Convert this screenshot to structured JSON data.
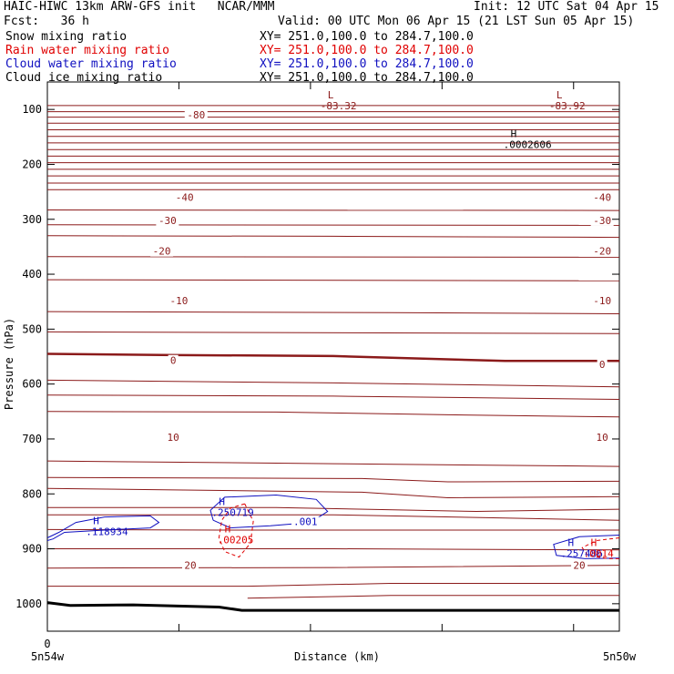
{
  "header": {
    "left_title": "HAIC-HIWC 13km ARW-GFS init   NCAR/MMM",
    "init": "Init: 12 UTC Sat 04 Apr 15",
    "fcst": "Fcst:   36 h",
    "valid": "Valid: 00 UTC Mon 06 Apr 15 (21 LST Sun 05 Apr 15)",
    "fields": [
      {
        "name": "Snow mixing ratio",
        "xy": "XY= 251.0,100.0 to 284.7,100.0",
        "color": "#000000"
      },
      {
        "name": "Rain water mixing ratio",
        "xy": "XY= 251.0,100.0 to 284.7,100.0",
        "color": "#e00000"
      },
      {
        "name": "Cloud water mixing ratio",
        "xy": "XY= 251.0,100.0 to 284.7,100.0",
        "color": "#1010c0"
      },
      {
        "name": "Cloud ice mixing ratio",
        "xy": "XY= 251.0,100.0 to 284.7,100.0",
        "color": "#000000"
      }
    ]
  },
  "chart_data": {
    "type": "contour-cross-section",
    "xlabel": "Distance (km)",
    "ylabel": "Pressure (hPa)",
    "x_tick_labels": [
      "0"
    ],
    "x_endpoint_labels": [
      "5n54w",
      "5n50w"
    ],
    "ylim": [
      1050,
      50
    ],
    "y_ticks": [
      100,
      200,
      300,
      400,
      500,
      600,
      700,
      800,
      900,
      1000
    ],
    "colors": {
      "temperature": "#8b1a1a",
      "rain": "#e00000",
      "cloud_water": "#1010c0",
      "terrain": "#000000"
    },
    "temperature_label_levels": [
      {
        "text": "-80",
        "p": 110,
        "x": 0.26
      },
      {
        "text": "-40",
        "p": 260,
        "x": 0.24
      },
      {
        "text": "-40",
        "p": 260,
        "x": 0.97
      },
      {
        "text": "-30",
        "p": 302,
        "x": 0.21
      },
      {
        "text": "-30",
        "p": 302,
        "x": 0.97
      },
      {
        "text": "-20",
        "p": 358,
        "x": 0.2
      },
      {
        "text": "-20",
        "p": 358,
        "x": 0.97
      },
      {
        "text": "-10",
        "p": 448,
        "x": 0.23
      },
      {
        "text": "-10",
        "p": 448,
        "x": 0.97
      },
      {
        "text": "0",
        "p": 557,
        "x": 0.22
      },
      {
        "text": "0",
        "p": 564,
        "x": 0.97
      },
      {
        "text": "10",
        "p": 697,
        "x": 0.22
      },
      {
        "text": "10",
        "p": 697,
        "x": 0.97
      },
      {
        "text": "20",
        "p": 930,
        "x": 0.25
      },
      {
        "text": "20",
        "p": 930,
        "x": 0.93
      }
    ],
    "extrema": [
      {
        "kind": "L",
        "value": "-83.32",
        "x": 0.49,
        "p": 80,
        "color": "#8b1a1a"
      },
      {
        "kind": "L",
        "value": "-83.92",
        "x": 0.89,
        "p": 80,
        "color": "#8b1a1a"
      },
      {
        "kind": "H",
        "value": ".0002606",
        "x": 0.81,
        "p": 150,
        "color": "#000000"
      },
      {
        "kind": "H",
        "value": ".118934",
        "x": 0.08,
        "p": 855,
        "color": "#1010c0"
      },
      {
        "kind": "H",
        "value": ".250719",
        "x": 0.3,
        "p": 820,
        "color": "#1010c0"
      },
      {
        "kind": "H",
        "value": ".00205",
        "x": 0.31,
        "p": 870,
        "color": "#e00000"
      },
      {
        "kind": "H",
        "value": ".257486",
        "x": 0.91,
        "p": 895,
        "color": "#1010c0"
      },
      {
        "kind": "H",
        "value": ".0014",
        "x": 0.95,
        "p": 895,
        "color": "#e00000"
      }
    ],
    "contour_value_labels": [
      {
        "text": ".001",
        "x": 0.43,
        "p": 857,
        "color": "#1010c0"
      }
    ]
  }
}
